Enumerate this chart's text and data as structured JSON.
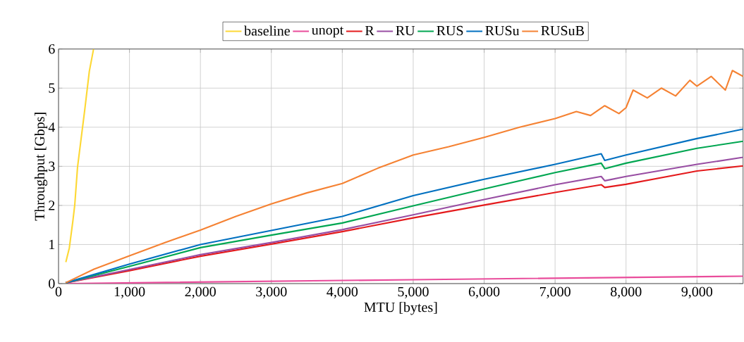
{
  "chart_data": {
    "type": "line",
    "xlabel": "MTU [bytes]",
    "ylabel": "Throughput [Gbps]",
    "xlim": [
      0,
      9650
    ],
    "ylim": [
      0,
      6
    ],
    "xticks": [
      {
        "value": 0,
        "label": "0"
      },
      {
        "value": 1000,
        "label": "1,000"
      },
      {
        "value": 2000,
        "label": "2,000"
      },
      {
        "value": 3000,
        "label": "3,000"
      },
      {
        "value": 4000,
        "label": "4,000"
      },
      {
        "value": 5000,
        "label": "5,000"
      },
      {
        "value": 6000,
        "label": "6,000"
      },
      {
        "value": 7000,
        "label": "7,000"
      },
      {
        "value": 8000,
        "label": "8,000"
      },
      {
        "value": 9000,
        "label": "9,000"
      }
    ],
    "yticks": [
      0,
      1,
      2,
      3,
      4,
      5,
      6
    ],
    "grid": true,
    "legend": "top",
    "marker": "none",
    "line_style": "solid",
    "series": [
      {
        "name": "baseline",
        "color": "#fdd835",
        "x": [
          103,
          152,
          202,
          229,
          268,
          318,
          368,
          434,
          494
        ],
        "values": [
          0.55,
          0.91,
          1.6,
          2.02,
          2.98,
          3.7,
          4.42,
          5.43,
          6.0
        ]
      },
      {
        "name": "unopt",
        "color": "#e94c9b",
        "x": [
          100,
          5000,
          9650
        ],
        "values": [
          0.0,
          0.1,
          0.19
        ]
      },
      {
        "name": "R",
        "color": "#e41a1c",
        "x": [
          100,
          1000,
          2000,
          3000,
          4000,
          5000,
          6000,
          7000,
          7650,
          7700,
          8000,
          9000,
          9650
        ],
        "values": [
          0.02,
          0.33,
          0.7,
          1.01,
          1.33,
          1.68,
          2.01,
          2.33,
          2.53,
          2.46,
          2.54,
          2.88,
          3.01
        ]
      },
      {
        "name": "RU",
        "color": "#984ea3",
        "x": [
          100,
          1000,
          2000,
          3000,
          4000,
          5000,
          6000,
          7000,
          7650,
          7700,
          8000,
          9000,
          9650
        ],
        "values": [
          0.02,
          0.36,
          0.74,
          1.05,
          1.38,
          1.76,
          2.15,
          2.53,
          2.74,
          2.63,
          2.74,
          3.05,
          3.23
        ]
      },
      {
        "name": "RUS",
        "color": "#00a651",
        "x": [
          100,
          1000,
          2000,
          3000,
          4000,
          5000,
          6000,
          7000,
          7650,
          7700,
          8000,
          9000,
          9650
        ],
        "values": [
          0.02,
          0.44,
          0.92,
          1.24,
          1.55,
          1.99,
          2.42,
          2.84,
          3.08,
          2.94,
          3.08,
          3.46,
          3.64
        ]
      },
      {
        "name": "RUSu",
        "color": "#0070c0",
        "x": [
          100,
          1000,
          2000,
          3000,
          4000,
          5000,
          6000,
          7000,
          7650,
          7700,
          8000,
          9000,
          9650
        ],
        "values": [
          0.02,
          0.5,
          1.0,
          1.36,
          1.72,
          2.25,
          2.67,
          3.05,
          3.32,
          3.15,
          3.29,
          3.71,
          3.95
        ]
      },
      {
        "name": "RUSuB",
        "color": "#f58233",
        "x": [
          100,
          500,
          1000,
          1500,
          2000,
          2500,
          3000,
          3500,
          4000,
          4500,
          5000,
          5500,
          6000,
          6500,
          7000,
          7300,
          7500,
          7700,
          7900,
          8000,
          8100,
          8300,
          8500,
          8700,
          8900,
          9000,
          9200,
          9400,
          9500,
          9650
        ],
        "values": [
          0.02,
          0.37,
          0.71,
          1.05,
          1.37,
          1.72,
          2.04,
          2.32,
          2.56,
          2.95,
          3.29,
          3.5,
          3.74,
          4.0,
          4.22,
          4.4,
          4.3,
          4.55,
          4.35,
          4.5,
          4.95,
          4.75,
          5.0,
          4.8,
          5.2,
          5.05,
          5.3,
          4.95,
          5.45,
          5.3
        ]
      }
    ]
  }
}
